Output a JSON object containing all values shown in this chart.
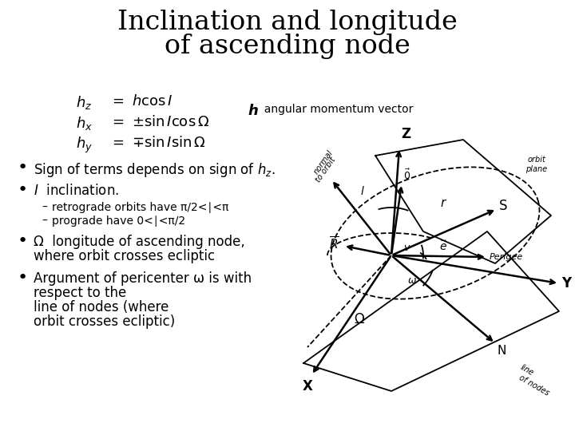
{
  "title_line1": "Inclination and longitude",
  "title_line2": "of ascending node",
  "title_fontsize": 24,
  "title_fontfamily": "serif",
  "bg_color": "#ffffff",
  "equations": [
    {
      "lhs": "$h_z$",
      "rhs": "$h \\cos I$"
    },
    {
      "lhs": "$h_x$",
      "rhs": "$\\pm \\sin I \\cos \\Omega$"
    },
    {
      "lhs": "$h_y$",
      "rhs": "$\\mp \\sin I \\sin \\Omega$"
    }
  ],
  "h_label": "h",
  "h_desc": "  angular momentum vector",
  "bullet1": "Sign of terms depends on sign of $h_z$.",
  "bullet2_main": "$I$  inclination.",
  "bullet2_sub1": "retrograde orbits have π/2<∣<π",
  "bullet2_sub2": "prograde have 0<∣<π/2",
  "bullet3a": "Ω  longitude of ascending node,",
  "bullet3b": "where orbit crosses ecliptic",
  "bullet4_line1": "Argument of pericenter ω is with",
  "bullet4_line2": "respect to the",
  "bullet4_line3": "line of nodes (where",
  "bullet4_line4": "orbit crosses ecliptic)",
  "text_color": "#000000",
  "bullet_fontsize": 12,
  "sub_bullet_fontsize": 10,
  "eq_fontsize": 13
}
